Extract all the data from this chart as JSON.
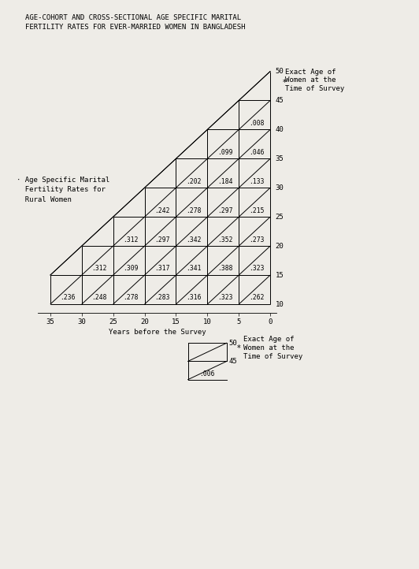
{
  "title1": "AGE-COHORT AND CROSS-SECTIONAL AGE SPECIFIC MARITAL",
  "title2": "FERTILITY RATES FOR EVER-MARRIED WOMEN IN BANGLADESH",
  "x_label": "Years before the Survey",
  "y_label_right1": "Exact Age of",
  "y_label_right2": "Women at the",
  "y_label_right3": "Time of Survey",
  "annotation_label": "· Age Specific Marital\n  Fertility Rates for\n  Rural Women",
  "cell_values": {
    "row15_col35": ".236",
    "row15_col30": ".248",
    "row15_col25": ".278",
    "row15_col20": ".283",
    "row15_col15": ".316",
    "row15_col10": ".323",
    "row15_col5": ".262",
    "row20_col30": ".312",
    "row20_col25": ".309",
    "row20_col20": ".317",
    "row20_col15": ".341",
    "row20_col10": ".388",
    "row20_col5": ".323",
    "row25_col25": ".312",
    "row25_col20": ".297",
    "row25_col15": ".342",
    "row25_col10": ".352",
    "row25_col5": ".273",
    "row30_col20": ".242",
    "row30_col15": ".278",
    "row30_col10": ".297",
    "row30_col5": ".215",
    "row35_col15": ".202",
    "row35_col10": ".184",
    "row35_col5": ".133",
    "row40_col10": ".099",
    "row40_col5": ".046",
    "row45_col5": ".008",
    "small_val": ".006"
  },
  "bg_color": "#eeece7",
  "line_color": "#000000",
  "text_color": "#000000",
  "font_size_title": 6.5,
  "font_size_values": 5.8,
  "font_size_ticks": 6.5,
  "font_size_label": 6.5,
  "font_size_annot": 6.5
}
